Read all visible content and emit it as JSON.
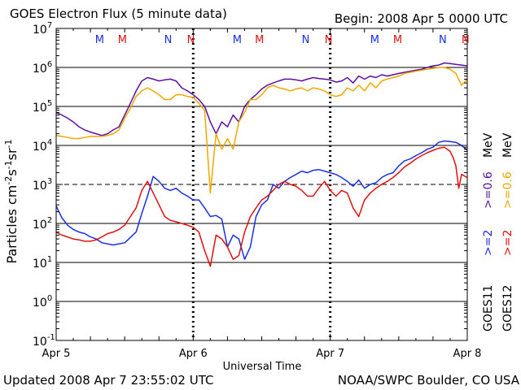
{
  "header": {
    "title": "GOES Electron Flux (5 minute data)",
    "begin": "Begin: 2008 Apr 5 0000 UTC"
  },
  "footer": {
    "updated": "Updated 2008 Apr  7 23:55:02 UTC",
    "source": "NOAA/SWPC Boulder, CO USA"
  },
  "colors": {
    "blue": "#1a2fe0",
    "red": "#e01010",
    "purple": "#5a10a0",
    "orange": "#f0a800"
  },
  "chart_data": {
    "type": "line",
    "title": "GOES Electron Flux (5 minute data)",
    "xlabel": "Universal Time",
    "ylabel": "Particles cm⁻²s⁻¹sr⁻¹",
    "ylabel_parts": {
      "base": "Particles cm",
      "exp1": "-2",
      "mid1": "s",
      "exp2": "-1",
      "mid2": "sr",
      "exp3": "-1"
    },
    "yscale": "log",
    "xlim": [
      0,
      72
    ],
    "ylim_exp": [
      -1,
      7
    ],
    "y_ticks": [
      {
        "exp": -1,
        "label": "-1"
      },
      {
        "exp": 0,
        "label": "0"
      },
      {
        "exp": 1,
        "label": "1"
      },
      {
        "exp": 2,
        "label": "2"
      },
      {
        "exp": 3,
        "label": "3"
      },
      {
        "exp": 4,
        "label": "4"
      },
      {
        "exp": 5,
        "label": "5"
      },
      {
        "exp": 6,
        "label": "6"
      },
      {
        "exp": 7,
        "label": "7"
      }
    ],
    "tick_base": "10",
    "x_ticks": [
      {
        "hour": 0,
        "label": "Apr 5"
      },
      {
        "hour": 24,
        "label": "Apr 6"
      },
      {
        "hour": 48,
        "label": "Apr 7"
      },
      {
        "hour": 72,
        "label": "Apr 8"
      }
    ],
    "solid_gridlines_exp": [
      0,
      1,
      2,
      4,
      5,
      6
    ],
    "dashed_threshold_exp": 3,
    "day_boundaries_hour": [
      24,
      48
    ],
    "markers": [
      {
        "label": "M",
        "hour": 7.6,
        "color": "blue"
      },
      {
        "label": "M",
        "hour": 11.6,
        "color": "red"
      },
      {
        "label": "N",
        "hour": 19.6,
        "color": "blue"
      },
      {
        "label": "N",
        "hour": 23.6,
        "color": "red"
      },
      {
        "label": "M",
        "hour": 31.7,
        "color": "blue"
      },
      {
        "label": "M",
        "hour": 35.6,
        "color": "red"
      },
      {
        "label": "N",
        "hour": 43.7,
        "color": "blue"
      },
      {
        "label": "N",
        "hour": 47.7,
        "color": "red"
      },
      {
        "label": "M",
        "hour": 55.8,
        "color": "blue"
      },
      {
        "label": "M",
        "hour": 59.8,
        "color": "red"
      },
      {
        "label": "N",
        "hour": 67.7,
        "color": "blue"
      },
      {
        "label": "N",
        "hour": 71.7,
        "color": "red"
      }
    ],
    "legend": {
      "placement": "right",
      "groups": [
        {
          "text": "GOES11",
          "color": "#000000",
          "items": [
            {
              "text": ">=2",
              "color": "blue"
            },
            {
              "text": ">=0.6",
              "color": "purple"
            }
          ]
        },
        {
          "text": "GOES12",
          "color": "#000000",
          "items": [
            {
              "text": ">=2",
              "color": "red"
            },
            {
              "text": ">=0.6",
              "color": "orange"
            }
          ]
        }
      ],
      "unit": "MeV"
    },
    "series": [
      {
        "name": "GOES11 >=2 MeV",
        "color": "blue",
        "x": [
          0,
          1,
          2,
          3,
          4,
          5,
          6,
          7,
          8,
          10,
          12,
          14,
          15,
          16,
          17,
          18,
          19,
          20,
          21,
          22,
          23,
          24,
          25,
          26,
          27,
          28,
          29,
          30,
          31,
          32,
          33,
          34,
          35,
          36,
          37,
          38,
          39,
          40,
          41,
          42,
          43,
          44,
          45,
          46,
          47,
          48,
          49,
          50,
          51,
          52,
          53,
          54,
          55,
          56,
          57,
          58,
          59,
          60,
          61,
          62,
          63,
          64,
          65,
          66,
          67,
          68,
          69,
          70,
          71,
          72
        ],
        "values": [
          280,
          140,
          90,
          70,
          60,
          55,
          45,
          40,
          32,
          28,
          32,
          60,
          180,
          500,
          1600,
          1200,
          800,
          700,
          800,
          600,
          500,
          400,
          400,
          250,
          150,
          160,
          130,
          25,
          50,
          40,
          12,
          25,
          150,
          300,
          400,
          1000,
          800,
          1200,
          1500,
          1800,
          2200,
          2000,
          2300,
          2400,
          2200,
          2000,
          1800,
          1500,
          1200,
          900,
          1300,
          800,
          1000,
          1100,
          1500,
          1800,
          2000,
          3000,
          4000,
          4500,
          5500,
          6500,
          8000,
          9000,
          12000,
          13000,
          12500,
          12000,
          10000,
          7500
        ]
      },
      {
        "name": "GOES12 >=2 MeV",
        "color": "red",
        "x": [
          0,
          1,
          2,
          3,
          4,
          5,
          6,
          7,
          8,
          9,
          10,
          11,
          12,
          13,
          14,
          15,
          16,
          17,
          18,
          19,
          20,
          21,
          22,
          23,
          24,
          25,
          26,
          27,
          28,
          29,
          30,
          31,
          32,
          33,
          34,
          35,
          36,
          37,
          38,
          39,
          40,
          41,
          42,
          43,
          44,
          45,
          46,
          47,
          48,
          49,
          50,
          51,
          52,
          53,
          54,
          55,
          56,
          57,
          58,
          59,
          60,
          61,
          62,
          63,
          64,
          65,
          66,
          67,
          68,
          69,
          69.5,
          70,
          70.5,
          71,
          72
        ],
        "values": [
          60,
          50,
          45,
          40,
          38,
          35,
          35,
          38,
          45,
          55,
          60,
          70,
          90,
          150,
          250,
          700,
          1200,
          600,
          300,
          150,
          120,
          110,
          100,
          90,
          80,
          60,
          20,
          8,
          50,
          40,
          25,
          12,
          15,
          60,
          150,
          250,
          400,
          500,
          700,
          1000,
          1200,
          1000,
          900,
          700,
          500,
          500,
          800,
          1200,
          700,
          500,
          700,
          600,
          250,
          150,
          400,
          600,
          800,
          1000,
          1200,
          1500,
          2000,
          2800,
          3500,
          4500,
          5500,
          6500,
          7500,
          8500,
          9000,
          7000,
          5000,
          3000,
          800,
          1800,
          1500
        ]
      },
      {
        "name": "GOES11 >=0.6 MeV",
        "color": "purple",
        "x": [
          0,
          1,
          2,
          3,
          4,
          5,
          6,
          7,
          8,
          9,
          10,
          11,
          12,
          13,
          14,
          15,
          16,
          17,
          18,
          19,
          20,
          21,
          22,
          23,
          24,
          25,
          26,
          27,
          28,
          29,
          30,
          31,
          32,
          33,
          34,
          35,
          36,
          37,
          38,
          39,
          40,
          41,
          42,
          43,
          44,
          45,
          46,
          47,
          48,
          49,
          50,
          51,
          52,
          53,
          54,
          55,
          56,
          57,
          58,
          59,
          60,
          61,
          62,
          63,
          64,
          65,
          66,
          67,
          68,
          69,
          70,
          71,
          72
        ],
        "values": [
          70000,
          60000,
          50000,
          40000,
          30000,
          25000,
          22000,
          20000,
          18000,
          20000,
          25000,
          30000,
          60000,
          120000,
          250000,
          450000,
          550000,
          500000,
          450000,
          480000,
          500000,
          450000,
          300000,
          250000,
          200000,
          150000,
          100000,
          40000,
          20000,
          40000,
          30000,
          60000,
          40000,
          100000,
          150000,
          200000,
          280000,
          350000,
          400000,
          450000,
          500000,
          500000,
          480000,
          450000,
          500000,
          550000,
          520000,
          500000,
          480000,
          420000,
          450000,
          550000,
          400000,
          600000,
          500000,
          600000,
          550000,
          650000,
          600000,
          650000,
          700000,
          750000,
          800000,
          850000,
          900000,
          1000000,
          1100000,
          1150000,
          1300000,
          1250000,
          1200000,
          1150000,
          1100000
        ]
      },
      {
        "name": "GOES12 >=0.6 MeV",
        "color": "orange",
        "x": [
          0,
          1,
          2,
          3,
          4,
          5,
          6,
          7,
          8,
          9,
          10,
          11,
          12,
          13,
          14,
          15,
          16,
          17,
          18,
          19,
          20,
          21,
          22,
          23,
          24,
          25,
          26,
          27,
          28,
          29,
          30,
          31,
          32,
          33,
          34,
          35,
          36,
          37,
          38,
          39,
          40,
          41,
          42,
          43,
          44,
          45,
          46,
          47,
          48,
          49,
          50,
          51,
          52,
          53,
          54,
          55,
          56,
          57,
          58,
          59,
          60,
          61,
          62,
          63,
          64,
          65,
          66,
          67,
          68,
          69,
          70,
          71,
          72
        ],
        "values": [
          18000,
          17000,
          16000,
          15000,
          15000,
          16000,
          17000,
          17000,
          17000,
          18000,
          20000,
          25000,
          50000,
          90000,
          180000,
          250000,
          300000,
          250000,
          200000,
          150000,
          150000,
          200000,
          200000,
          180000,
          170000,
          120000,
          80000,
          600,
          20000,
          8000,
          15000,
          8000,
          40000,
          70000,
          150000,
          150000,
          200000,
          300000,
          350000,
          300000,
          280000,
          250000,
          280000,
          300000,
          250000,
          300000,
          280000,
          250000,
          200000,
          180000,
          200000,
          300000,
          250000,
          350000,
          250000,
          400000,
          300000,
          450000,
          500000,
          550000,
          600000,
          700000,
          750000,
          800000,
          850000,
          900000,
          950000,
          1000000,
          1000000,
          900000,
          700000,
          350000,
          500000
        ]
      }
    ]
  }
}
